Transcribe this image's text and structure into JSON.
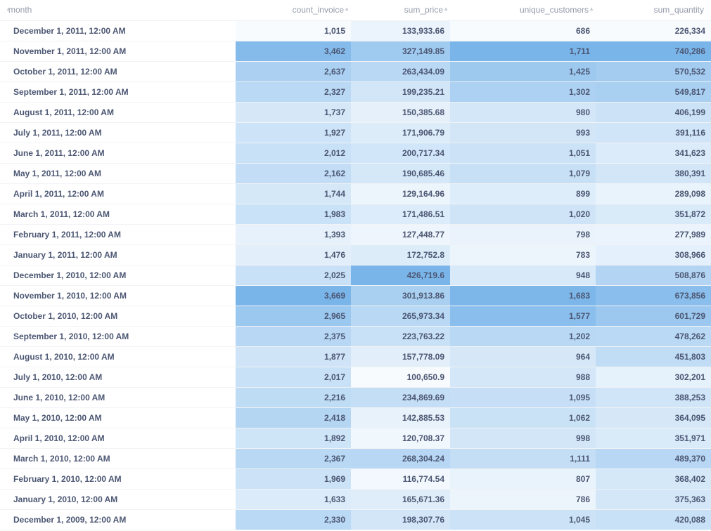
{
  "table": {
    "columns": [
      "month",
      "count_invoice",
      "sum_price",
      "unique_customers",
      "sum_quantity"
    ],
    "sort_icon": "caret-up-icon",
    "colors": {
      "base": "#ffffff",
      "heat": "#509ee3"
    },
    "rows": [
      {
        "month": "December 1, 2011, 12:00 AM",
        "count_invoice": "1,015",
        "sum_price": "133,933.66",
        "unique_customers": "686",
        "sum_quantity": "226,334",
        "v": [
          1015,
          133933.66,
          686,
          226334
        ]
      },
      {
        "month": "November 1, 2011, 12:00 AM",
        "count_invoice": "3,462",
        "sum_price": "327,149.85",
        "unique_customers": "1,711",
        "sum_quantity": "740,286",
        "v": [
          3462,
          327149.85,
          1711,
          740286
        ]
      },
      {
        "month": "October 1, 2011, 12:00 AM",
        "count_invoice": "2,637",
        "sum_price": "263,434.09",
        "unique_customers": "1,425",
        "sum_quantity": "570,532",
        "v": [
          2637,
          263434.09,
          1425,
          570532
        ]
      },
      {
        "month": "September 1, 2011, 12:00 AM",
        "count_invoice": "2,327",
        "sum_price": "199,235.21",
        "unique_customers": "1,302",
        "sum_quantity": "549,817",
        "v": [
          2327,
          199235.21,
          1302,
          549817
        ]
      },
      {
        "month": "August 1, 2011, 12:00 AM",
        "count_invoice": "1,737",
        "sum_price": "150,385.68",
        "unique_customers": "980",
        "sum_quantity": "406,199",
        "v": [
          1737,
          150385.68,
          980,
          406199
        ]
      },
      {
        "month": "July 1, 2011, 12:00 AM",
        "count_invoice": "1,927",
        "sum_price": "171,906.79",
        "unique_customers": "993",
        "sum_quantity": "391,116",
        "v": [
          1927,
          171906.79,
          993,
          391116
        ]
      },
      {
        "month": "June 1, 2011, 12:00 AM",
        "count_invoice": "2,012",
        "sum_price": "200,717.34",
        "unique_customers": "1,051",
        "sum_quantity": "341,623",
        "v": [
          2012,
          200717.34,
          1051,
          341623
        ]
      },
      {
        "month": "May 1, 2011, 12:00 AM",
        "count_invoice": "2,162",
        "sum_price": "190,685.46",
        "unique_customers": "1,079",
        "sum_quantity": "380,391",
        "v": [
          2162,
          190685.46,
          1079,
          380391
        ]
      },
      {
        "month": "April 1, 2011, 12:00 AM",
        "count_invoice": "1,744",
        "sum_price": "129,164.96",
        "unique_customers": "899",
        "sum_quantity": "289,098",
        "v": [
          1744,
          129164.96,
          899,
          289098
        ]
      },
      {
        "month": "March 1, 2011, 12:00 AM",
        "count_invoice": "1,983",
        "sum_price": "171,486.51",
        "unique_customers": "1,020",
        "sum_quantity": "351,872",
        "v": [
          1983,
          171486.51,
          1020,
          351872
        ]
      },
      {
        "month": "February 1, 2011, 12:00 AM",
        "count_invoice": "1,393",
        "sum_price": "127,448.77",
        "unique_customers": "798",
        "sum_quantity": "277,989",
        "v": [
          1393,
          127448.77,
          798,
          277989
        ]
      },
      {
        "month": "January 1, 2011, 12:00 AM",
        "count_invoice": "1,476",
        "sum_price": "172,752.8",
        "unique_customers": "783",
        "sum_quantity": "308,966",
        "v": [
          1476,
          172752.8,
          783,
          308966
        ]
      },
      {
        "month": "December 1, 2010, 12:00 AM",
        "count_invoice": "2,025",
        "sum_price": "426,719.6",
        "unique_customers": "948",
        "sum_quantity": "508,876",
        "v": [
          2025,
          426719.6,
          948,
          508876
        ]
      },
      {
        "month": "November 1, 2010, 12:00 AM",
        "count_invoice": "3,669",
        "sum_price": "301,913.86",
        "unique_customers": "1,683",
        "sum_quantity": "673,856",
        "v": [
          3669,
          301913.86,
          1683,
          673856
        ]
      },
      {
        "month": "October 1, 2010, 12:00 AM",
        "count_invoice": "2,965",
        "sum_price": "265,973.34",
        "unique_customers": "1,577",
        "sum_quantity": "601,729",
        "v": [
          2965,
          265973.34,
          1577,
          601729
        ]
      },
      {
        "month": "September 1, 2010, 12:00 AM",
        "count_invoice": "2,375",
        "sum_price": "223,763.22",
        "unique_customers": "1,202",
        "sum_quantity": "478,262",
        "v": [
          2375,
          223763.22,
          1202,
          478262
        ]
      },
      {
        "month": "August 1, 2010, 12:00 AM",
        "count_invoice": "1,877",
        "sum_price": "157,778.09",
        "unique_customers": "964",
        "sum_quantity": "451,803",
        "v": [
          1877,
          157778.09,
          964,
          451803
        ]
      },
      {
        "month": "July 1, 2010, 12:00 AM",
        "count_invoice": "2,017",
        "sum_price": "100,650.9",
        "unique_customers": "988",
        "sum_quantity": "302,201",
        "v": [
          2017,
          100650.9,
          988,
          302201
        ]
      },
      {
        "month": "June 1, 2010, 12:00 AM",
        "count_invoice": "2,216",
        "sum_price": "234,869.69",
        "unique_customers": "1,095",
        "sum_quantity": "388,253",
        "v": [
          2216,
          234869.69,
          1095,
          388253
        ]
      },
      {
        "month": "May 1, 2010, 12:00 AM",
        "count_invoice": "2,418",
        "sum_price": "142,885.53",
        "unique_customers": "1,062",
        "sum_quantity": "364,095",
        "v": [
          2418,
          142885.53,
          1062,
          364095
        ]
      },
      {
        "month": "April 1, 2010, 12:00 AM",
        "count_invoice": "1,892",
        "sum_price": "120,708.37",
        "unique_customers": "998",
        "sum_quantity": "351,971",
        "v": [
          1892,
          120708.37,
          998,
          351971
        ]
      },
      {
        "month": "March 1, 2010, 12:00 AM",
        "count_invoice": "2,367",
        "sum_price": "268,304.24",
        "unique_customers": "1,111",
        "sum_quantity": "489,370",
        "v": [
          2367,
          268304.24,
          1111,
          489370
        ]
      },
      {
        "month": "February 1, 2010, 12:00 AM",
        "count_invoice": "1,969",
        "sum_price": "116,774.54",
        "unique_customers": "807",
        "sum_quantity": "368,402",
        "v": [
          1969,
          116774.54,
          807,
          368402
        ]
      },
      {
        "month": "January 1, 2010, 12:00 AM",
        "count_invoice": "1,633",
        "sum_price": "165,671.36",
        "unique_customers": "786",
        "sum_quantity": "375,363",
        "v": [
          1633,
          165671.36,
          786,
          375363
        ]
      },
      {
        "month": "December 1, 2009, 12:00 AM",
        "count_invoice": "2,330",
        "sum_price": "198,307.76",
        "unique_customers": "1,045",
        "sum_quantity": "420,088",
        "v": [
          2330,
          198307.76,
          1045,
          420088
        ]
      }
    ]
  }
}
